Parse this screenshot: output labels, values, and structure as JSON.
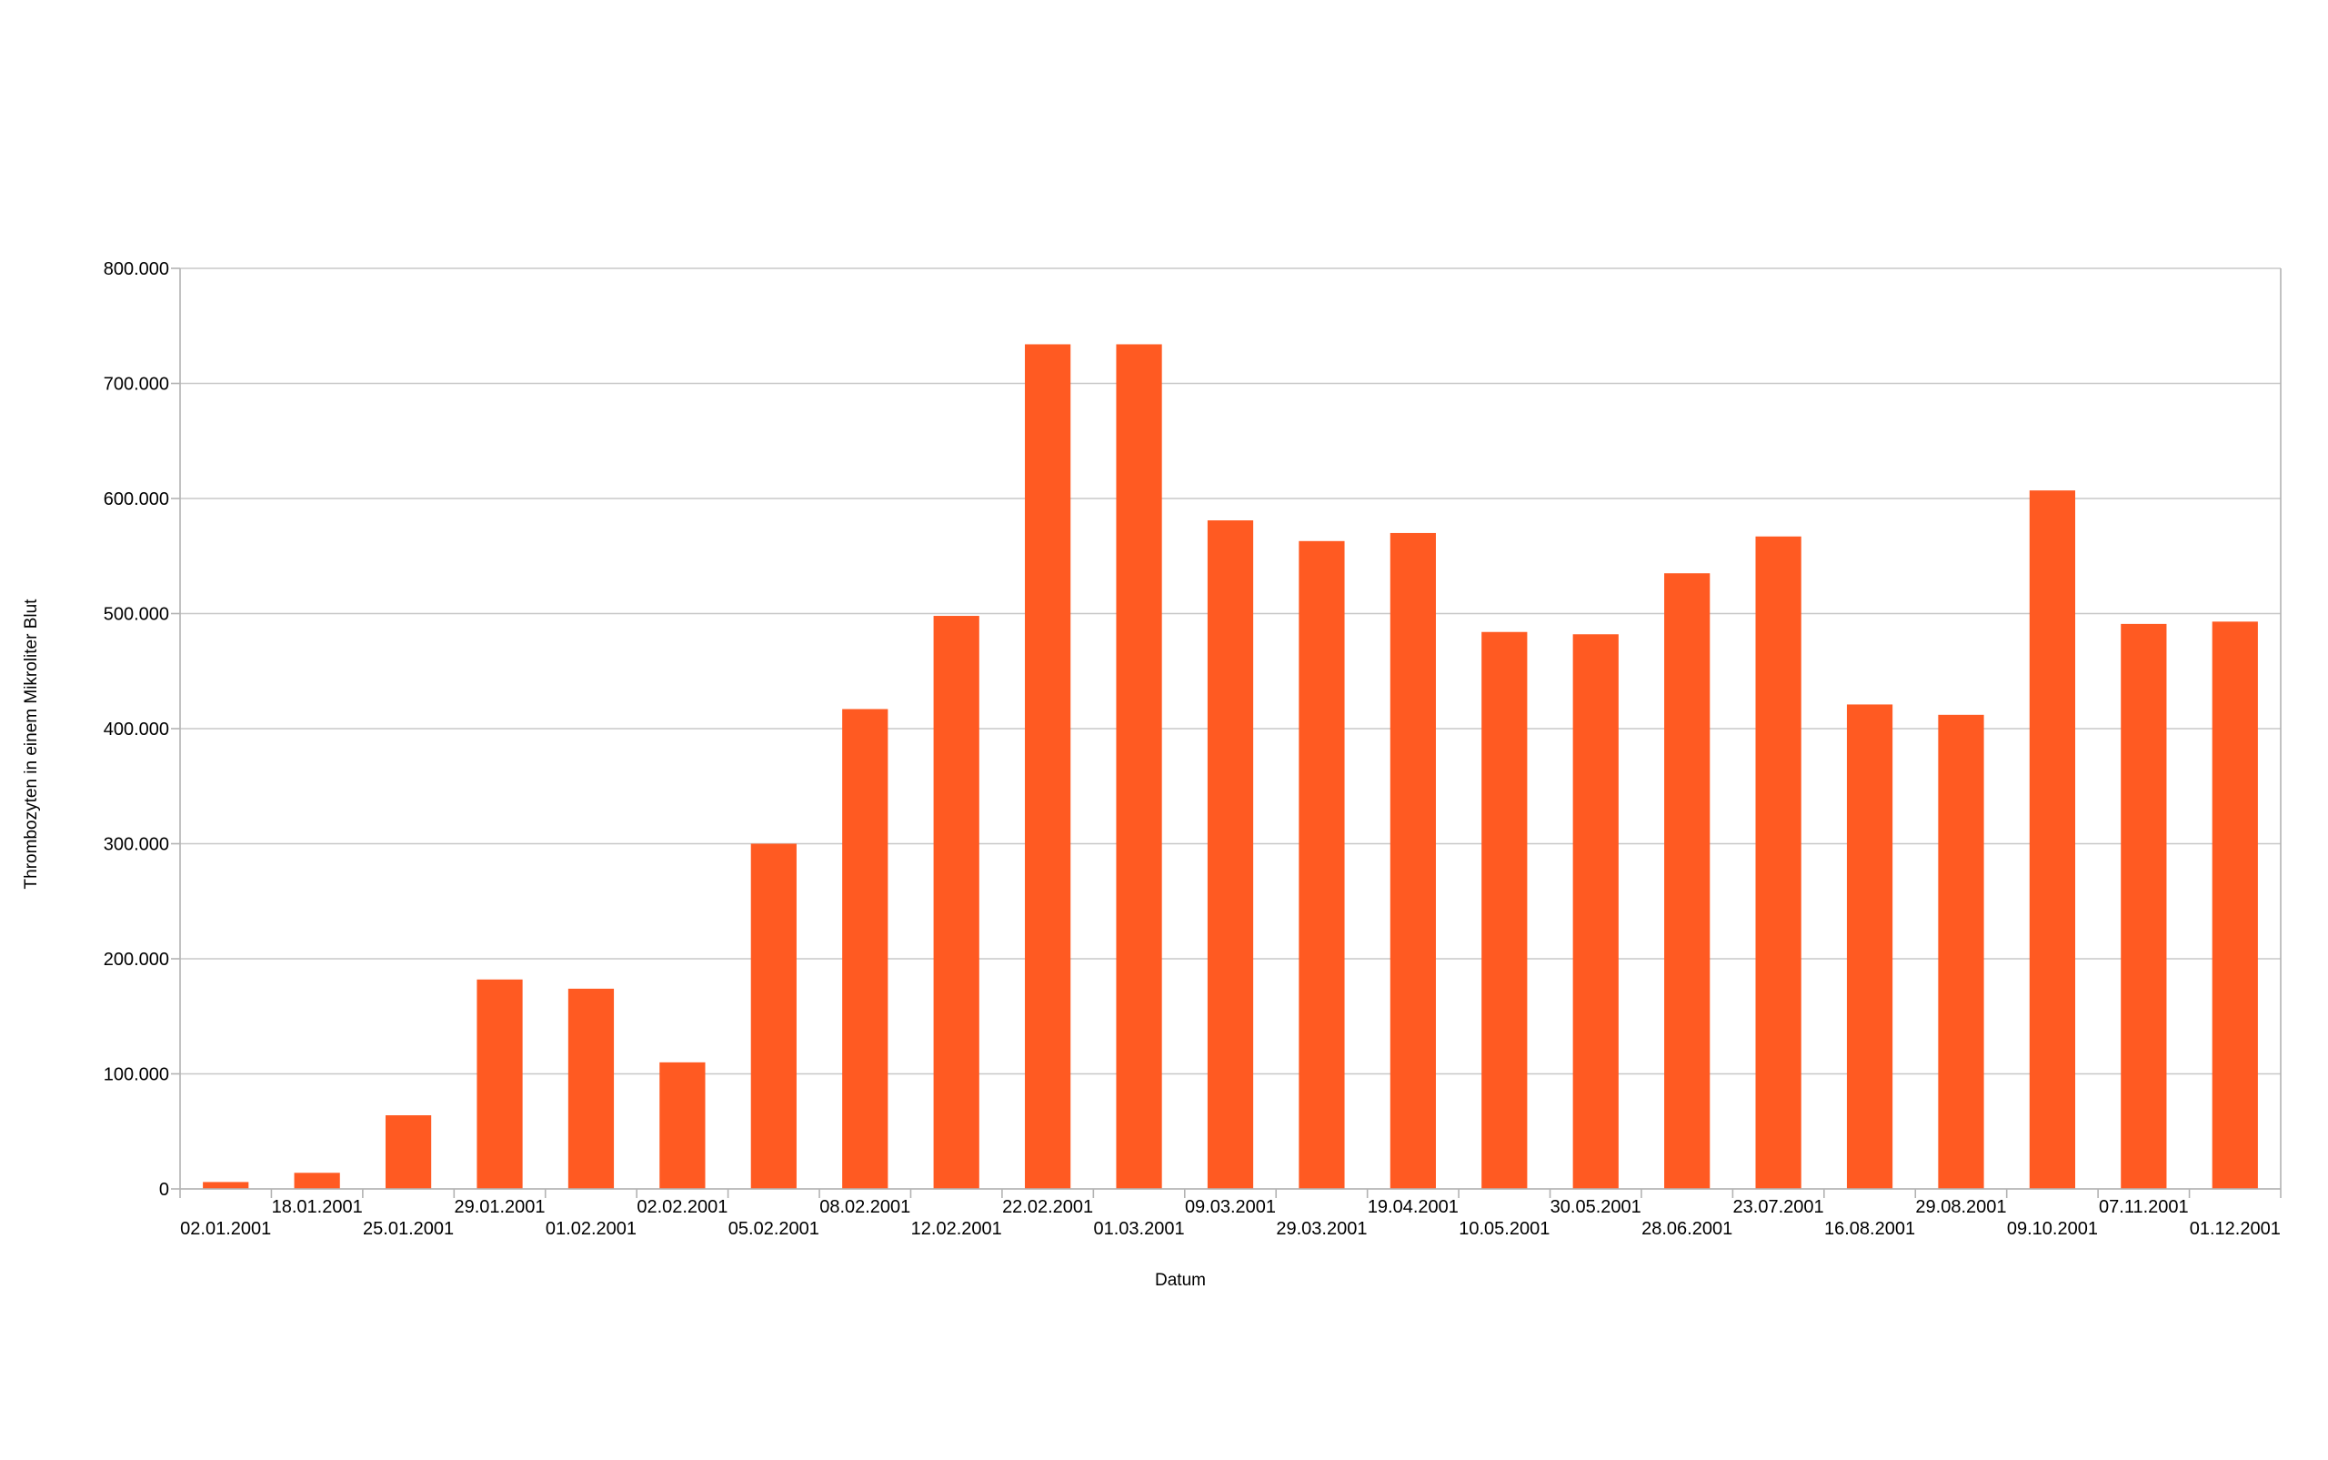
{
  "chart_data": {
    "type": "bar",
    "title": "",
    "xlabel": "Datum",
    "ylabel": "Thrombozyten in einem Mikroliter Blut",
    "ylim": [
      0,
      800000
    ],
    "yticks": [
      0,
      100000,
      200000,
      300000,
      400000,
      500000,
      600000,
      700000,
      800000
    ],
    "ytick_labels": [
      "0",
      "100.000",
      "200.000",
      "300.000",
      "400.000",
      "500.000",
      "600.000",
      "700.000",
      "800.000"
    ],
    "grid": true,
    "legend": "none",
    "categories": [
      "02.01.2001",
      "18.01.2001",
      "25.01.2001",
      "29.01.2001",
      "01.02.2001",
      "02.02.2001",
      "05.02.2001",
      "08.02.2001",
      "12.02.2001",
      "22.02.2001",
      "01.03.2001",
      "09.03.2001",
      "29.03.2001",
      "19.04.2001",
      "10.05.2001",
      "30.05.2001",
      "28.06.2001",
      "23.07.2001",
      "16.08.2001",
      "29.08.2001",
      "09.10.2001",
      "07.11.2001",
      "01.12.2001"
    ],
    "values": [
      6000,
      14000,
      64000,
      182000,
      174000,
      110000,
      300000,
      417000,
      498000,
      734000,
      734000,
      581000,
      563000,
      570000,
      484000,
      482000,
      535000,
      567000,
      421000,
      412000,
      607000,
      491000,
      493000
    ],
    "bar_color": "#ff5a22"
  }
}
